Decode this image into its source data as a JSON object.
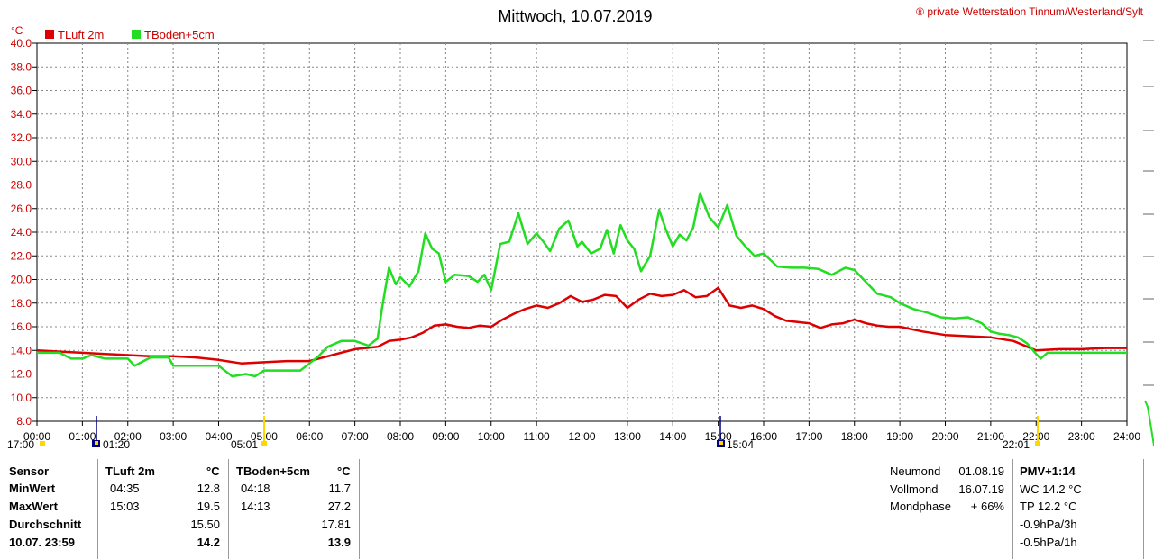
{
  "header": {
    "title": "Mittwoch, 10.07.2019",
    "copyright": "® private Wetterstation Tinnum/Westerland/Sylt",
    "unit": "°C"
  },
  "legend": [
    {
      "label": "TLuft 2m",
      "color": "#dd0000"
    },
    {
      "label": "TBoden+5cm",
      "color": "#22dd22"
    }
  ],
  "events": {
    "left_time": "17:00",
    "moonrise": "01:20",
    "sunrise": "05:01",
    "moonset": "15:04",
    "sunset": "22:01"
  },
  "chart_data": {
    "type": "line",
    "ylim": [
      8,
      40
    ],
    "yticks": [
      "8.0",
      "10.0",
      "12.0",
      "14.0",
      "16.0",
      "18.0",
      "20.0",
      "22.0",
      "24.0",
      "26.0",
      "28.0",
      "30.0",
      "32.0",
      "34.0",
      "36.0",
      "38.0",
      "40.0"
    ],
    "xlim": [
      0,
      24
    ],
    "xticks": [
      "00:00",
      "01:00",
      "02:00",
      "03:00",
      "04:00",
      "05:00",
      "06:00",
      "07:00",
      "08:00",
      "09:00",
      "10:00",
      "11:00",
      "12:00",
      "13:00",
      "14:00",
      "15:00",
      "16:00",
      "17:00",
      "18:00",
      "19:00",
      "20:00",
      "21:00",
      "22:00",
      "23:00",
      "24:00"
    ],
    "series": [
      {
        "name": "TLuft 2m",
        "color": "#dd0000",
        "x": [
          0,
          0.5,
          1,
          1.5,
          2,
          2.5,
          3,
          3.5,
          4,
          4.5,
          5,
          5.5,
          6,
          6.5,
          7,
          7.25,
          7.5,
          7.75,
          8,
          8.25,
          8.5,
          8.75,
          9,
          9.25,
          9.5,
          9.75,
          10,
          10.25,
          10.5,
          10.75,
          11,
          11.25,
          11.5,
          11.75,
          12,
          12.25,
          12.5,
          12.75,
          13,
          13.25,
          13.5,
          13.75,
          14,
          14.25,
          14.5,
          14.75,
          15,
          15.25,
          15.5,
          15.75,
          16,
          16.25,
          16.5,
          16.75,
          17,
          17.25,
          17.5,
          17.75,
          18,
          18.25,
          18.5,
          18.75,
          19,
          19.5,
          20,
          20.5,
          21,
          21.5,
          22,
          22.5,
          23,
          23.5,
          24
        ],
        "values": [
          14.0,
          13.9,
          13.8,
          13.7,
          13.6,
          13.5,
          13.5,
          13.4,
          13.2,
          12.9,
          13.0,
          13.1,
          13.1,
          13.6,
          14.1,
          14.2,
          14.3,
          14.8,
          14.9,
          15.1,
          15.5,
          16.1,
          16.2,
          16.0,
          15.9,
          16.1,
          16.0,
          16.6,
          17.1,
          17.5,
          17.8,
          17.6,
          18.0,
          18.6,
          18.1,
          18.3,
          18.7,
          18.6,
          17.6,
          18.3,
          18.8,
          18.6,
          18.7,
          19.1,
          18.5,
          18.6,
          19.3,
          17.8,
          17.6,
          17.8,
          17.5,
          16.9,
          16.5,
          16.4,
          16.3,
          15.9,
          16.2,
          16.3,
          16.6,
          16.3,
          16.1,
          16.0,
          16.0,
          15.6,
          15.3,
          15.2,
          15.1,
          14.8,
          14.0,
          14.1,
          14.1,
          14.2,
          14.2
        ]
      },
      {
        "name": "TBoden+5cm",
        "color": "#22dd22",
        "x": [
          0,
          0.5,
          0.75,
          1,
          1.2,
          1.5,
          2,
          2.15,
          2.5,
          2.9,
          3,
          3.5,
          4,
          4.3,
          4.6,
          4.8,
          5,
          5.5,
          5.8,
          6,
          6.2,
          6.4,
          6.7,
          7,
          7.3,
          7.5,
          7.6,
          7.75,
          7.9,
          8,
          8.2,
          8.4,
          8.55,
          8.7,
          8.85,
          9,
          9.2,
          9.5,
          9.7,
          9.85,
          10,
          10.2,
          10.4,
          10.6,
          10.8,
          11,
          11.15,
          11.3,
          11.5,
          11.7,
          11.9,
          12,
          12.2,
          12.4,
          12.55,
          12.7,
          12.85,
          13,
          13.15,
          13.3,
          13.5,
          13.7,
          13.85,
          14,
          14.15,
          14.3,
          14.45,
          14.6,
          14.8,
          15,
          15.2,
          15.4,
          15.6,
          15.8,
          16,
          16.3,
          16.6,
          16.9,
          17.2,
          17.5,
          17.8,
          18,
          18.2,
          18.5,
          18.8,
          19,
          19.3,
          19.6,
          19.9,
          20.2,
          20.5,
          20.8,
          21,
          21.2,
          21.4,
          21.6,
          21.8,
          22,
          22.1,
          22.25,
          22.5,
          23,
          23.5,
          24
        ],
        "values": [
          13.8,
          13.8,
          13.3,
          13.3,
          13.6,
          13.3,
          13.3,
          12.7,
          13.4,
          13.4,
          12.7,
          12.7,
          12.7,
          11.8,
          12.0,
          11.8,
          12.3,
          12.3,
          12.3,
          12.9,
          13.5,
          14.3,
          14.8,
          14.8,
          14.4,
          15.0,
          17.6,
          21.0,
          19.6,
          20.2,
          19.4,
          20.7,
          23.9,
          22.6,
          22.2,
          19.8,
          20.4,
          20.3,
          19.8,
          20.4,
          19.1,
          23.0,
          23.2,
          25.6,
          23.0,
          23.9,
          23.2,
          22.4,
          24.3,
          25.0,
          22.8,
          23.2,
          22.2,
          22.6,
          24.2,
          22.2,
          24.6,
          23.3,
          22.6,
          20.7,
          22.0,
          25.9,
          24.2,
          22.8,
          23.8,
          23.3,
          24.4,
          27.3,
          25.3,
          24.4,
          26.3,
          23.7,
          22.8,
          22.0,
          22.2,
          21.1,
          21.0,
          21.0,
          20.9,
          20.4,
          21.0,
          20.8,
          20.0,
          18.8,
          18.5,
          18.0,
          17.5,
          17.2,
          16.8,
          16.7,
          16.8,
          16.3,
          15.6,
          15.4,
          15.3,
          15.1,
          14.6,
          13.7,
          13.3,
          13.8,
          13.8,
          13.8,
          13.8,
          13.8
        ]
      }
    ],
    "grid": true,
    "legend_placement": "top-left"
  },
  "table": {
    "row_labels": [
      "Sensor",
      "MinWert",
      "MaxWert",
      "Durchschnitt",
      "10.07. 23:59"
    ],
    "columns": [
      {
        "header": "TLuft 2m",
        "unit": "°C",
        "min_time": "04:35",
        "min_val": "12.8",
        "max_time": "15:03",
        "max_val": "19.5",
        "avg": "15.50",
        "current": "14.2"
      },
      {
        "header": "TBoden+5cm",
        "unit": "°C",
        "min_time": "04:18",
        "min_val": "11.7",
        "max_time": "14:13",
        "max_val": "27.2",
        "avg": "17.81",
        "current": "13.9"
      }
    ],
    "moon": [
      {
        "label": "Neumond",
        "value": "01.08.19"
      },
      {
        "label": "Vollmond",
        "value": "16.07.19"
      },
      {
        "label": "Mondphase",
        "value": "+ 66%"
      }
    ],
    "extra": [
      "PMV+1:14",
      "WC 14.2 °C",
      "TP 12.2 °C",
      "-0.9hPa/3h",
      "-0.5hPa/1h"
    ]
  }
}
